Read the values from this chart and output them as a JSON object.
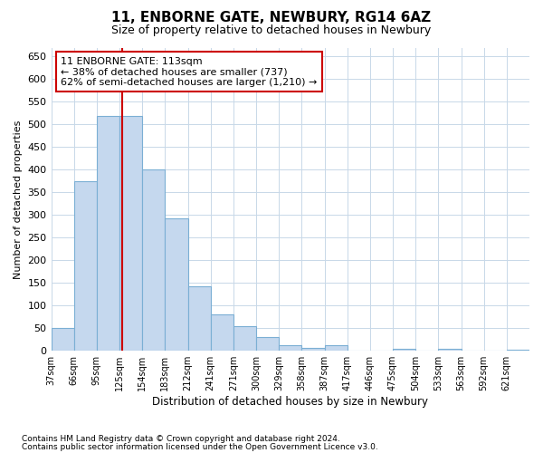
{
  "title1": "11, ENBORNE GATE, NEWBURY, RG14 6AZ",
  "title2": "Size of property relative to detached houses in Newbury",
  "xlabel": "Distribution of detached houses by size in Newbury",
  "ylabel": "Number of detached properties",
  "categories": [
    "37sqm",
    "66sqm",
    "95sqm",
    "125sqm",
    "154sqm",
    "183sqm",
    "212sqm",
    "241sqm",
    "271sqm",
    "300sqm",
    "329sqm",
    "358sqm",
    "387sqm",
    "417sqm",
    "446sqm",
    "475sqm",
    "504sqm",
    "533sqm",
    "563sqm",
    "592sqm",
    "621sqm"
  ],
  "values": [
    50,
    375,
    519,
    519,
    400,
    292,
    142,
    80,
    55,
    30,
    12,
    6,
    12,
    0,
    0,
    5,
    0,
    5,
    0,
    0,
    2
  ],
  "bar_color": "#c5d8ee",
  "bar_edge_color": "#7bafd4",
  "vline_x": 2.62,
  "vline_color": "#cc0000",
  "annotation_text": "11 ENBORNE GATE: 113sqm\n← 38% of detached houses are smaller (737)\n62% of semi-detached houses are larger (1,210) →",
  "annotation_box_color": "#ffffff",
  "annotation_box_edge": "#cc0000",
  "footnote1": "Contains HM Land Registry data © Crown copyright and database right 2024.",
  "footnote2": "Contains public sector information licensed under the Open Government Licence v3.0.",
  "ylim": [
    0,
    670
  ],
  "yticks": [
    0,
    50,
    100,
    150,
    200,
    250,
    300,
    350,
    400,
    450,
    500,
    550,
    600,
    650
  ],
  "background_color": "#ffffff",
  "grid_color": "#c8d8e8",
  "title_fontsize": 11,
  "subtitle_fontsize": 9
}
